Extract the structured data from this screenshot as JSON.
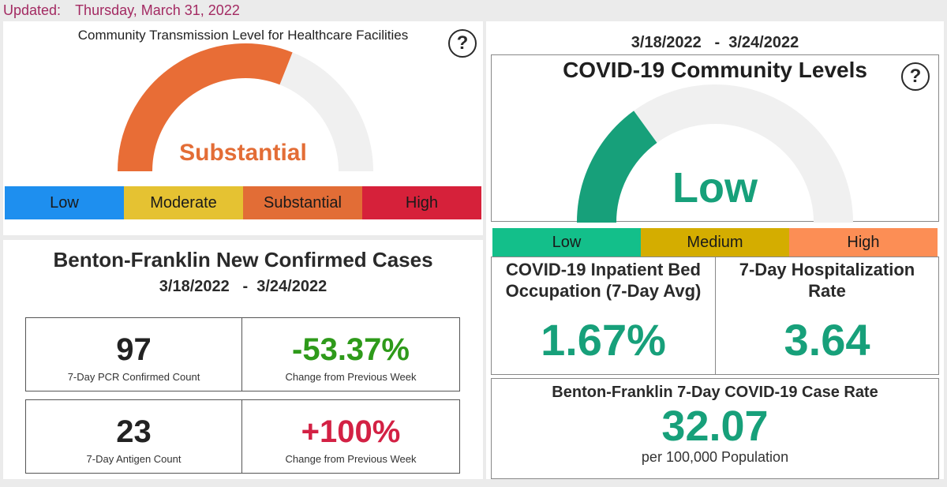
{
  "updated": {
    "label": "Updated:",
    "date": "Thursday, March 31, 2022"
  },
  "transmission": {
    "title": "Community Transmission Level for Healthcare Facilities",
    "value": "Substantial",
    "gauge_fraction": 0.62,
    "help": "?",
    "scale": [
      {
        "label": "Low",
        "color": "#1e8fef"
      },
      {
        "label": "Moderate",
        "color": "#e5c232"
      },
      {
        "label": "Substantial",
        "color": "#e26d36"
      },
      {
        "label": "High",
        "color": "#d6213a"
      }
    ],
    "value_color": "#e36d36"
  },
  "cases": {
    "title": "Benton-Franklin New Confirmed Cases",
    "dates": "3/18/2022   -  3/24/2022",
    "pcr": {
      "value": "97",
      "label": "7-Day PCR Confirmed Count"
    },
    "pcr_change": {
      "value": "-53.37%",
      "label": "Change from Previous Week",
      "color": "#2e9a1a"
    },
    "antigen": {
      "value": "23",
      "label": "7-Day Antigen Count"
    },
    "antigen_change": {
      "value": "+100%",
      "label": "Change from Previous Week",
      "color": "#d32144"
    }
  },
  "community": {
    "dates": "3/18/2022   -  3/24/2022",
    "title": "COVID-19 Community Levels",
    "help": "?",
    "value": "Low",
    "gauge_fraction": 0.3,
    "accent": "#17a07a",
    "scale": [
      {
        "label": "Low",
        "color": "#13bf8a"
      },
      {
        "label": "Medium",
        "color": "#d4ad00"
      },
      {
        "label": "High",
        "color": "#fc8e55"
      }
    ],
    "bed": {
      "label": "COVID-19 Inpatient Bed Occupation (7-Day Avg)",
      "value": "1.67%"
    },
    "hosp": {
      "label": "7-Day Hospitalization Rate",
      "value": "3.64"
    },
    "rate": {
      "label": "Benton-Franklin 7-Day COVID-19 Case Rate",
      "value": "32.07",
      "sub": "per 100,000 Population"
    }
  }
}
